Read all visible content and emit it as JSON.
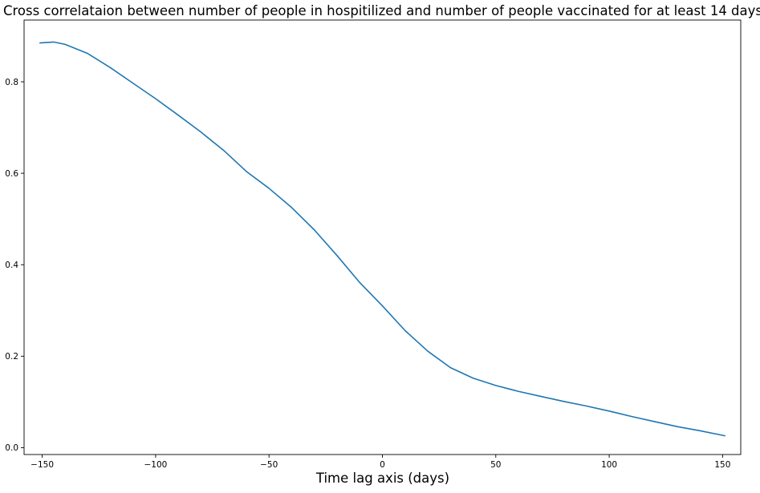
{
  "chart_data": {
    "type": "line",
    "title": "Cross correlataion between number of people in hospitilized and number of people vaccinated for at least 14 days",
    "xlabel": "Time lag axis (days)",
    "ylabel": "",
    "xlim": [
      -158,
      158
    ],
    "ylim": [
      -0.015,
      0.935
    ],
    "xticks": [
      -150,
      -100,
      -50,
      0,
      50,
      100,
      150
    ],
    "xtick_labels": [
      "−150",
      "−100",
      "−50",
      "0",
      "50",
      "100",
      "150"
    ],
    "yticks": [
      0.0,
      0.2,
      0.4,
      0.6,
      0.8
    ],
    "ytick_labels": [
      "0.0",
      "0.2",
      "0.4",
      "0.6",
      "0.8"
    ],
    "grid": false,
    "series": [
      {
        "color": "#1f77b4",
        "x": [
          -151,
          -145,
          -140,
          -130,
          -120,
          -110,
          -100,
          -90,
          -80,
          -70,
          -60,
          -50,
          -40,
          -30,
          -20,
          -10,
          0,
          10,
          20,
          30,
          40,
          50,
          60,
          70,
          80,
          90,
          100,
          110,
          120,
          130,
          140,
          151
        ],
        "y": [
          0.885,
          0.887,
          0.882,
          0.862,
          0.831,
          0.797,
          0.763,
          0.727,
          0.69,
          0.65,
          0.604,
          0.567,
          0.525,
          0.476,
          0.42,
          0.361,
          0.31,
          0.256,
          0.211,
          0.175,
          0.152,
          0.136,
          0.123,
          0.112,
          0.101,
          0.091,
          0.08,
          0.068,
          0.057,
          0.046,
          0.037,
          0.026
        ]
      }
    ]
  }
}
